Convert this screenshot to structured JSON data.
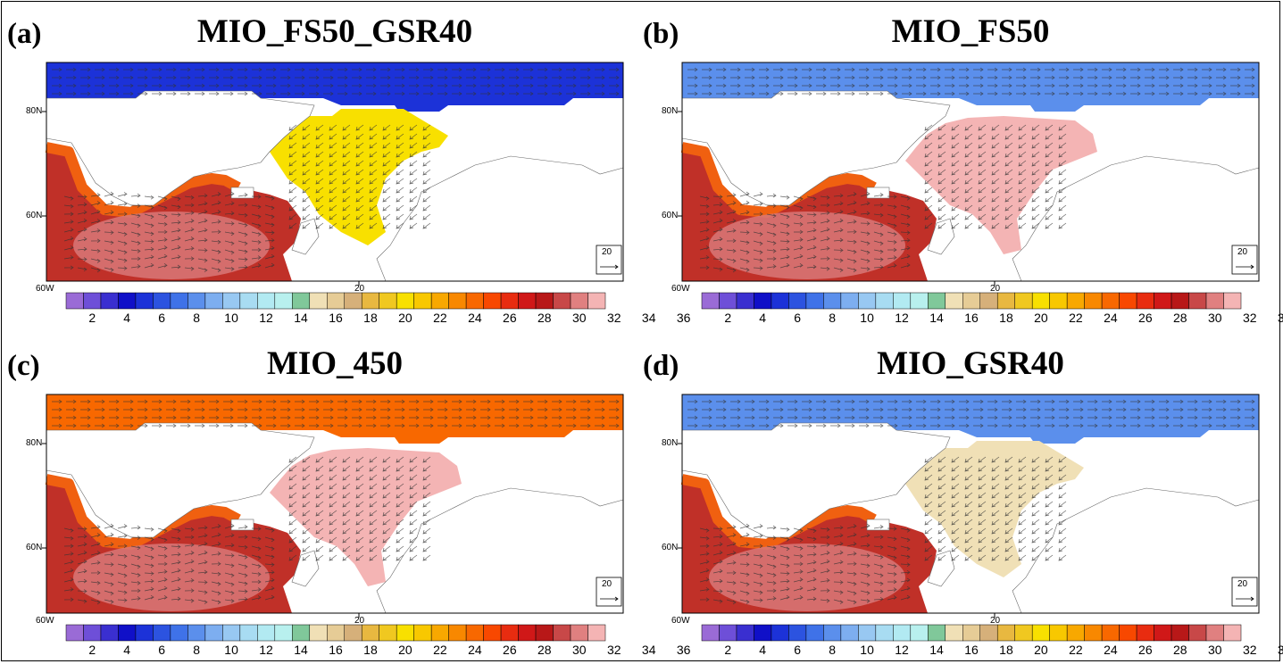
{
  "panels": [
    {
      "letter": "(a)",
      "title": "MIO_FS50_GSR40",
      "arctic": 5,
      "nordic": 20,
      "nordic_shape": "wide"
    },
    {
      "letter": "(b)",
      "title": "MIO_FS50",
      "arctic": 8,
      "nordic": 33,
      "nordic_shape": "box"
    },
    {
      "letter": "(c)",
      "title": "MIO_450",
      "arctic": 24,
      "nordic": 33,
      "nordic_shape": "box"
    },
    {
      "letter": "(d)",
      "title": "MIO_GSR40",
      "arctic": 8,
      "nordic": 15,
      "nordic_shape": "wide"
    }
  ],
  "axis_labels": {
    "lat_top": "80N",
    "lat_bottom": "60N",
    "lon_left": "60W",
    "lon_mid": "20"
  },
  "reference_vector": {
    "label": "20"
  },
  "colorbar": {
    "labels": [
      "2",
      "4",
      "6",
      "8",
      "10",
      "12",
      "14",
      "16",
      "18",
      "20",
      "22",
      "24",
      "26",
      "28",
      "30",
      "32",
      "34",
      "36"
    ],
    "colors": [
      "#9a6bd6",
      "#6e4fd8",
      "#3a2fd0",
      "#1010c8",
      "#1c32d8",
      "#2c53e0",
      "#3f72e8",
      "#5b8fec",
      "#7daef0",
      "#98c8f2",
      "#a8dcf2",
      "#b2eaf2",
      "#b8f0ee",
      "#80c89a",
      "#f0e0b6",
      "#e6cc96",
      "#d6b07a",
      "#e8b840",
      "#f0c820",
      "#f8e000",
      "#f8c800",
      "#f8a800",
      "#f88800",
      "#f86800",
      "#f84800",
      "#e82c10",
      "#d01818",
      "#b81818",
      "#c84848",
      "#e08080",
      "#f4b4b4"
    ]
  }
}
